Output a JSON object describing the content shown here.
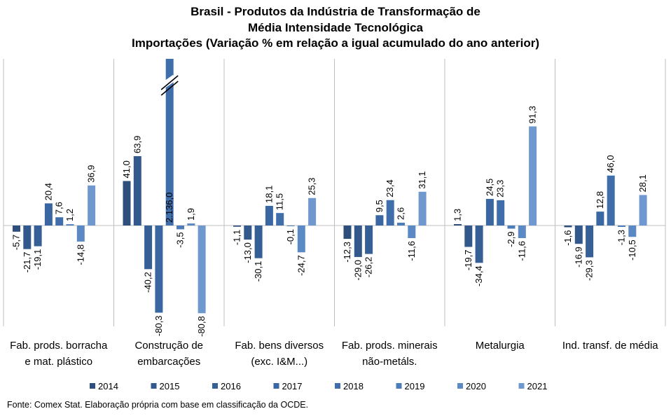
{
  "chart_data": {
    "type": "bar",
    "title": [
      "Brasil - Produtos da Indústria de Transformação de",
      "Média Intensidade Tecnológica",
      "Importações (Variação % em relação a igual acumulado do ano anterior)"
    ],
    "categories": [
      [
        "Fab. prods. borracha",
        "e mat. plástico"
      ],
      [
        "Construção de",
        "embarcações"
      ],
      [
        "Fab. bens diversos",
        "(exc. I&M...)"
      ],
      [
        "Fab. prods. minerais",
        "não-metáls."
      ],
      [
        "Metalurgia"
      ],
      [
        "Ind. transf. de média"
      ]
    ],
    "series": [
      {
        "name": "2014",
        "color": "#2e4e7c",
        "values": [
          -5.7,
          41.0,
          -1.1,
          -12.3,
          1.3,
          -1.6
        ],
        "labels": [
          "-5,7",
          "41,0",
          "-1,1",
          "-12,3",
          "1,3",
          "-1,6"
        ]
      },
      {
        "name": "2015",
        "color": "#32588c",
        "values": [
          -21.7,
          63.9,
          -13.0,
          -29.0,
          -19.7,
          -16.9
        ],
        "labels": [
          "-21,7",
          "63,9",
          "-13,0",
          "-29,0",
          "-19,7",
          "-16,9"
        ]
      },
      {
        "name": "2016",
        "color": "#365f96",
        "values": [
          -19.1,
          -40.2,
          -30.1,
          -26.2,
          -34.4,
          -29.3
        ],
        "labels": [
          "-19,1",
          "-40,2",
          "-30,1",
          "-26,2",
          "-34,4",
          "-29,3"
        ]
      },
      {
        "name": "2017",
        "color": "#3a67a1",
        "values": [
          20.4,
          -80.3,
          18.1,
          9.5,
          24.5,
          12.8
        ],
        "labels": [
          "20,4",
          "-80,3",
          "18,1",
          "9,5",
          "24,5",
          "12,8"
        ]
      },
      {
        "name": "2018",
        "color": "#3f6eab",
        "values": [
          7.6,
          2136.0,
          11.5,
          23.4,
          23.3,
          46.0
        ],
        "labels": [
          "7,6",
          "2.136,0",
          "11,5",
          "23,4",
          "23,3",
          "46,0"
        ]
      },
      {
        "name": "2019",
        "color": "#4d7cb8",
        "values": [
          1.2,
          -3.5,
          -0.1,
          2.6,
          -2.9,
          -1.3
        ],
        "labels": [
          "1,2",
          "-3,5",
          "-0,1",
          "2,6",
          "-2,9",
          "-1,3"
        ]
      },
      {
        "name": "2020",
        "color": "#5b89c4",
        "values": [
          -14.8,
          1.9,
          -24.7,
          -11.6,
          -11.6,
          -10.5
        ],
        "labels": [
          "-14,8",
          "1,9",
          "-24,7",
          "-11,6",
          "-11,6",
          "-10,5"
        ]
      },
      {
        "name": "2021",
        "color": "#6f98cf",
        "values": [
          36.9,
          -80.8,
          25.3,
          31.1,
          91.3,
          28.1
        ],
        "labels": [
          "36,9",
          "-80,8",
          "25,3",
          "31,1",
          "91,3",
          "28,1"
        ]
      }
    ],
    "ylim": [
      -82,
      152
    ],
    "axis_break": {
      "category": 1,
      "series": 4
    },
    "grid": false,
    "legend_position": "bottom",
    "source": "Fonte: Comex Stat. Elaboração própria com base em classificação da OCDE."
  }
}
